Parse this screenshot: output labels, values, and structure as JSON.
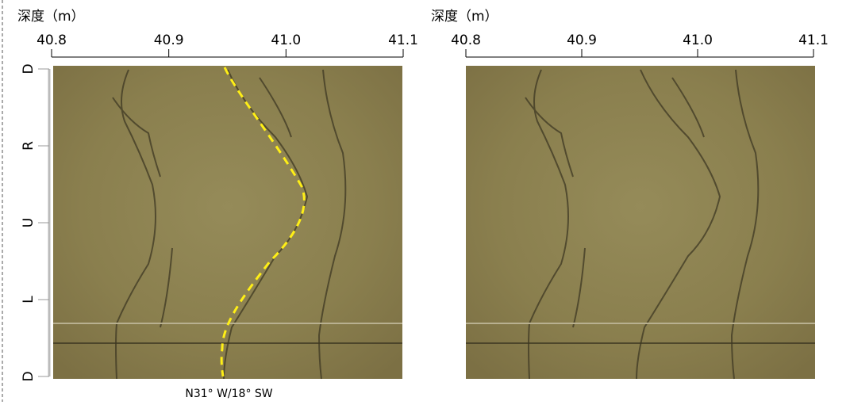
{
  "chart_data": [
    {
      "type": "image",
      "xlabel": "深度（m）",
      "xlim": [
        40.8,
        41.1
      ],
      "xticks": [
        40.8,
        40.9,
        {
          "value": 41,
          "label": "41.0"
        },
        41.1
      ],
      "y_categories": [
        "D",
        "R",
        "U",
        "L",
        "D"
      ],
      "annotation": "N31° W/18° SW"
    },
    {
      "type": "image",
      "xlabel": "深度（m）",
      "xlim": [
        40.8,
        41.1
      ],
      "xticks": [
        40.8,
        40.9,
        {
          "value": 41,
          "label": "41.0"
        },
        41.1
      ]
    }
  ]
}
